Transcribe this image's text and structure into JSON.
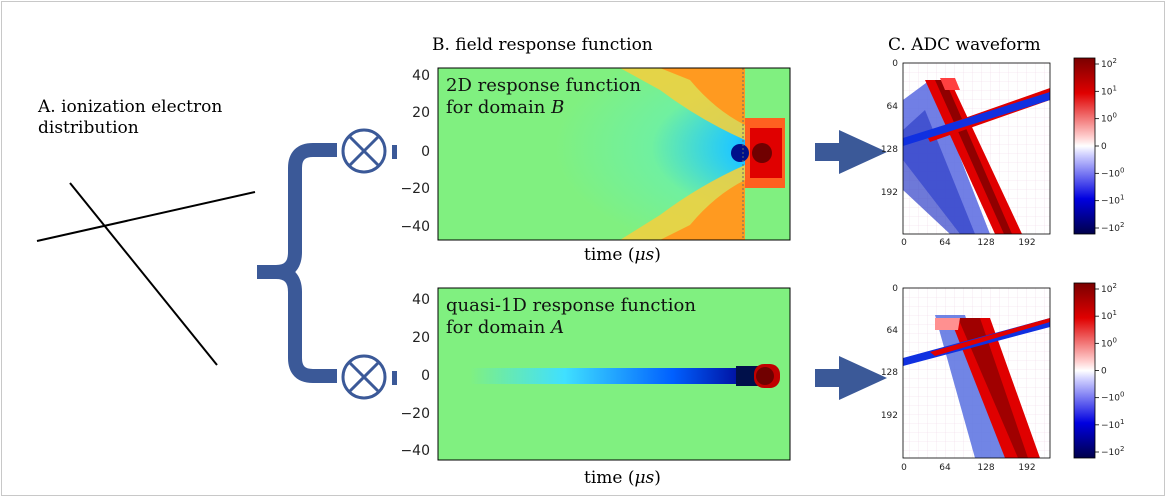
{
  "panel_a": {
    "title_line1": "A. ionization electron",
    "title_line2": "distribution"
  },
  "panel_b": {
    "title": "B. field response function",
    "y_ticks": [
      "40",
      "20",
      "0",
      "−20",
      "−40"
    ],
    "top_plot": {
      "label_line1": "2D response function",
      "label_line2_prefix": "for domain ",
      "label_line2_var": "B"
    },
    "bottom_plot": {
      "label_line1": "quasi-1D response function",
      "label_line2_prefix": "for domain ",
      "label_line2_var": "A"
    },
    "xlabel_prefix": "time (",
    "xlabel_unit": "μs",
    "xlabel_suffix": ")"
  },
  "panel_c": {
    "title": "C. ADC waveform",
    "axis_ticks": [
      "0",
      "64",
      "128",
      "192"
    ],
    "colorbar_ticks": [
      {
        "base": "10",
        "exp": "2"
      },
      {
        "base": "10",
        "exp": "1"
      },
      {
        "base": "10",
        "exp": "0"
      },
      {
        "base": "0",
        "exp": ""
      },
      {
        "base": "−10",
        "exp": "0"
      },
      {
        "base": "−10",
        "exp": "1"
      },
      {
        "base": "−10",
        "exp": "2"
      }
    ]
  },
  "colors": {
    "flow": "#3b5998",
    "field_bg": "#80f080",
    "positive": "#e00000",
    "negative": "#1020c0"
  }
}
